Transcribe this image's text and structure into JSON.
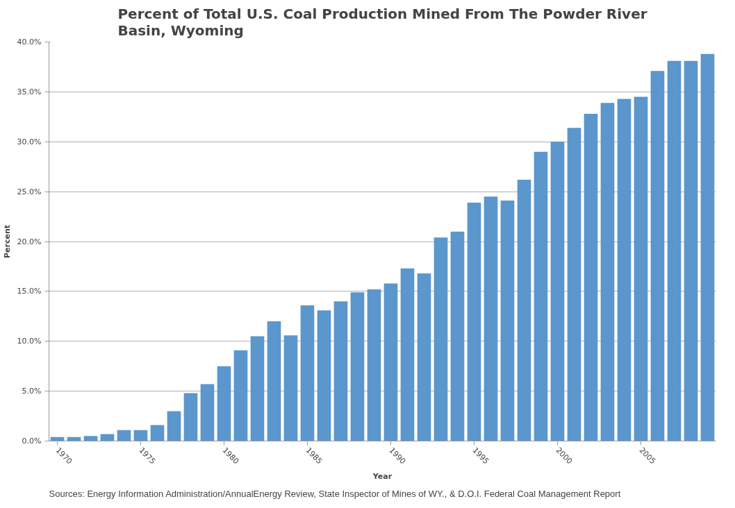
{
  "chart_data": {
    "type": "bar",
    "title": "Percent of Total U.S. Coal Production Mined From The Powder River Basin, Wyoming",
    "xlabel": "Year",
    "ylabel": "Percent",
    "categories": [
      "1970",
      null,
      null,
      null,
      null,
      "1975",
      null,
      null,
      null,
      null,
      "1980",
      null,
      null,
      null,
      null,
      "1985",
      null,
      null,
      null,
      null,
      "1990",
      null,
      null,
      null,
      null,
      "1995",
      null,
      null,
      null,
      null,
      "2000",
      null,
      null,
      null,
      null,
      "2005",
      null,
      null,
      null,
      null
    ],
    "values": [
      0.4,
      0.4,
      0.5,
      0.7,
      1.1,
      1.1,
      1.6,
      3.0,
      4.8,
      5.7,
      7.5,
      9.1,
      10.5,
      12.0,
      10.6,
      13.6,
      13.1,
      14.0,
      14.9,
      15.2,
      15.8,
      17.3,
      16.8,
      20.4,
      21.0,
      23.9,
      24.5,
      24.1,
      26.2,
      29.0,
      30.0,
      31.4,
      32.8,
      33.9,
      34.3,
      34.5,
      37.1,
      38.1,
      38.1,
      38.8
    ],
    "color": "#5b96cd",
    "ylim": [
      0,
      40
    ],
    "yticks": [
      {
        "value": 0,
        "label": "0.0%"
      },
      {
        "value": 5,
        "label": "5.0%"
      },
      {
        "value": 10,
        "label": "10.0%"
      },
      {
        "value": 15,
        "label": "15.0%"
      },
      {
        "value": 20,
        "label": "20.0%"
      },
      {
        "value": 25,
        "label": "25.0%"
      },
      {
        "value": 30,
        "label": "30.0%"
      },
      {
        "value": 35,
        "label": "35.0%"
      },
      {
        "value": 40,
        "label": "40.0%"
      }
    ],
    "grid": "y",
    "annotations": [
      "Sources: Energy Information Administration/AnnualEnergy Review, State Inspector of Mines of WY., & D.O.I. Federal Coal Management Report"
    ]
  }
}
